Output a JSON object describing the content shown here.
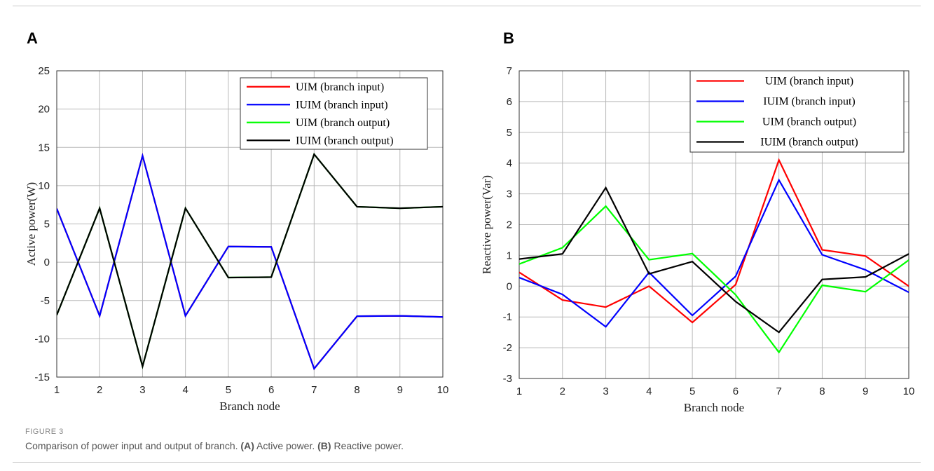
{
  "figure": {
    "label": "FIGURE 3",
    "caption_parts": [
      {
        "text": "Comparison of power input and output of branch. ",
        "bold": false
      },
      {
        "text": "(A)",
        "bold": true
      },
      {
        "text": " Active power. ",
        "bold": false
      },
      {
        "text": "(B)",
        "bold": true
      },
      {
        "text": " Reactive power.",
        "bold": false
      }
    ]
  },
  "colors": {
    "red": "#ff0000",
    "blue": "#0000ff",
    "green": "#00ff00",
    "black": "#000000"
  },
  "chart_data": [
    {
      "panel": "A",
      "type": "line",
      "xlabel": "Branch node",
      "ylabel": "Active power(W)",
      "x": [
        1,
        2,
        3,
        4,
        5,
        6,
        7,
        8,
        9,
        10
      ],
      "xlim": [
        1,
        10
      ],
      "ylim": [
        -15,
        25
      ],
      "yticks": [
        -15,
        -10,
        -5,
        0,
        5,
        10,
        15,
        20,
        25
      ],
      "grid": true,
      "legend_position": "top-right",
      "series": [
        {
          "name": "UIM (branch input)",
          "color": "#ff0000",
          "values": [
            7,
            -7,
            13.9,
            -7,
            2.05,
            2.0,
            -13.9,
            -7.05,
            -7.0,
            -7.15
          ]
        },
        {
          "name": "IUIM (branch input)",
          "color": "#0000ff",
          "values": [
            7,
            -7,
            13.9,
            -7,
            2.05,
            2.0,
            -13.9,
            -7.05,
            -7.0,
            -7.15
          ]
        },
        {
          "name": "UIM (branch output)",
          "color": "#00ff00",
          "values": [
            -6.9,
            7.05,
            -13.6,
            7.05,
            -2.0,
            -1.95,
            14.1,
            7.25,
            7.05,
            7.25
          ]
        },
        {
          "name": "IUIM (branch output)",
          "color": "#000000",
          "values": [
            -6.9,
            7.05,
            -13.6,
            7.05,
            -2.0,
            -1.95,
            14.1,
            7.25,
            7.05,
            7.25
          ]
        }
      ]
    },
    {
      "panel": "B",
      "type": "line",
      "xlabel": "Branch node",
      "ylabel": "Reactive power(Var)",
      "x": [
        1,
        2,
        3,
        4,
        5,
        6,
        7,
        8,
        9,
        10
      ],
      "xlim": [
        1,
        10
      ],
      "ylim": [
        -3,
        7
      ],
      "yticks": [
        -3,
        -2,
        -1,
        0,
        1,
        2,
        3,
        4,
        5,
        6,
        7
      ],
      "grid": true,
      "legend_position": "top-right",
      "series": [
        {
          "name": "UIM (branch input)",
          "color": "#ff0000",
          "values": [
            0.45,
            -0.45,
            -0.68,
            0.0,
            -1.18,
            0.05,
            4.1,
            1.18,
            0.98,
            0.0
          ]
        },
        {
          "name": " IUIM  (branch input)",
          "color": "#0000ff",
          "values": [
            0.28,
            -0.27,
            -1.32,
            0.45,
            -0.95,
            0.32,
            3.45,
            1.02,
            0.53,
            -0.2
          ]
        },
        {
          "name": "UIM (branch output)",
          "color": "#00ff00",
          "values": [
            0.72,
            1.25,
            2.6,
            0.86,
            1.06,
            -0.28,
            -2.15,
            0.03,
            -0.18,
            0.85
          ]
        },
        {
          "name": " IUIM  (branch output)",
          "color": "#000000",
          "values": [
            0.88,
            1.05,
            3.2,
            0.4,
            0.8,
            -0.5,
            -1.5,
            0.22,
            0.3,
            1.05
          ]
        }
      ]
    }
  ]
}
